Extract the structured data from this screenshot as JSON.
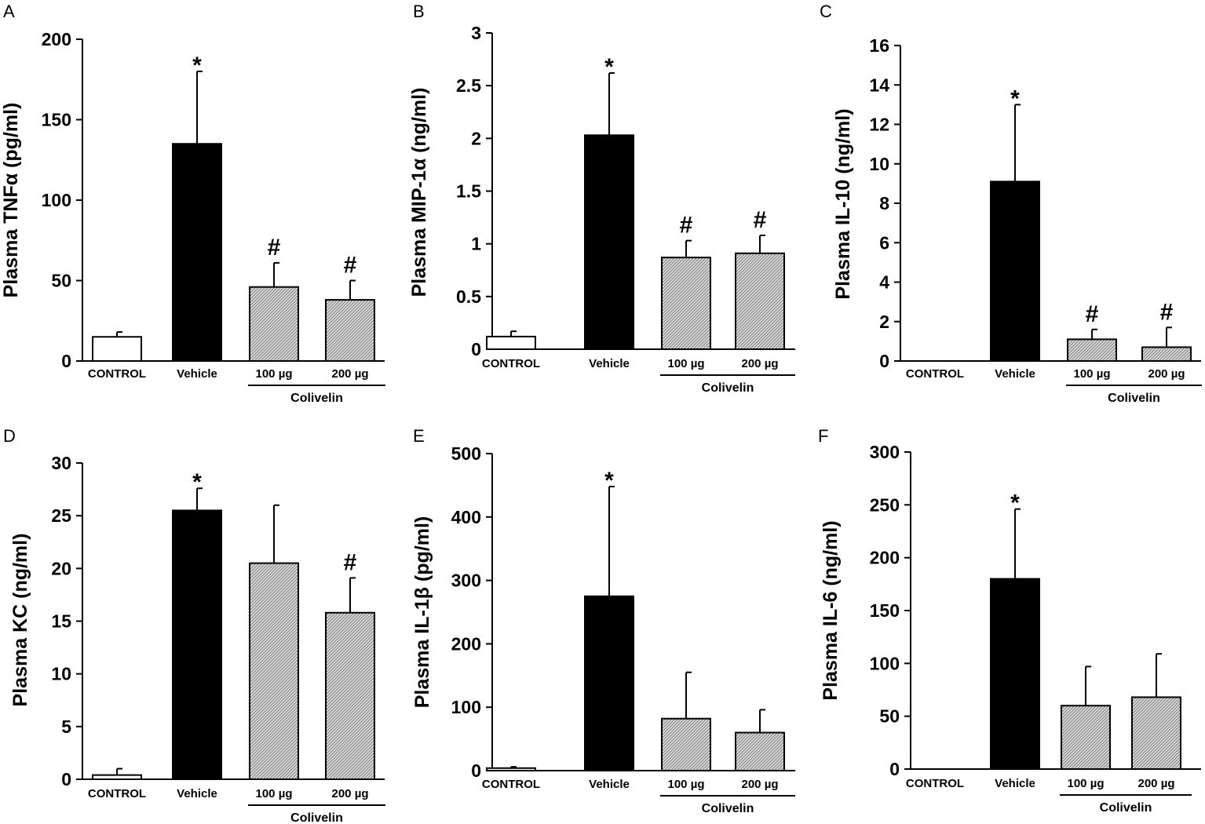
{
  "chart_data": [
    {
      "panel": "A",
      "type": "bar",
      "ylabel": "Plasma TNFα (pg/ml)",
      "yticks": [
        "0",
        "50",
        "100",
        "150",
        "200"
      ],
      "ylim": [
        0,
        200
      ],
      "categories": [
        "CONTROL",
        "Vehicle",
        "100 µg",
        "200 µg"
      ],
      "group_label": "Colivelin",
      "values": [
        15,
        135,
        46,
        38
      ],
      "errors": [
        3,
        45,
        15,
        12
      ],
      "annotations": [
        "",
        "*",
        "#",
        "#"
      ],
      "fills": [
        "white",
        "black",
        "hatch",
        "hatch"
      ]
    },
    {
      "panel": "B",
      "type": "bar",
      "ylabel": "Plasma MIP-1α (ng/ml)",
      "yticks": [
        "0",
        "0.5",
        "1",
        "1.5",
        "2",
        "2.5",
        "3"
      ],
      "ylim": [
        0,
        3
      ],
      "categories": [
        "CONTROL",
        "Vehicle",
        "100 µg",
        "200 µg"
      ],
      "group_label": "Colivelin",
      "values": [
        0.12,
        2.03,
        0.87,
        0.91
      ],
      "errors": [
        0.05,
        0.59,
        0.16,
        0.17
      ],
      "annotations": [
        "",
        "*",
        "#",
        "#"
      ],
      "fills": [
        "white",
        "black",
        "hatch",
        "hatch"
      ]
    },
    {
      "panel": "C",
      "type": "bar",
      "ylabel": "Plasma IL-10 (ng/ml)",
      "yticks": [
        "0",
        "2",
        "4",
        "6",
        "8",
        "10",
        "12",
        "14",
        "16"
      ],
      "ylim": [
        0,
        16
      ],
      "categories": [
        "CONTROL",
        "Vehicle",
        "100 µg",
        "200 µg"
      ],
      "group_label": "Colivelin",
      "values": [
        0,
        9.1,
        1.1,
        0.7
      ],
      "errors": [
        0,
        3.9,
        0.5,
        1.0
      ],
      "annotations": [
        "",
        "*",
        "#",
        "#"
      ],
      "fills": [
        "white",
        "black",
        "hatch",
        "hatch"
      ]
    },
    {
      "panel": "D",
      "type": "bar",
      "ylabel": "Plasma KC (ng/ml)",
      "yticks": [
        "0",
        "5",
        "10",
        "15",
        "20",
        "25",
        "30"
      ],
      "ylim": [
        0,
        30
      ],
      "categories": [
        "CONTROL",
        "Vehicle",
        "100 µg",
        "200 µg"
      ],
      "group_label": "Colivelin",
      "values": [
        0.4,
        25.5,
        20.5,
        15.8
      ],
      "errors": [
        0.6,
        2.1,
        5.5,
        3.3
      ],
      "annotations": [
        "",
        "*",
        "",
        "#"
      ],
      "fills": [
        "white",
        "black",
        "hatch",
        "hatch"
      ]
    },
    {
      "panel": "E",
      "type": "bar",
      "ylabel": "Plasma IL-1β (pg/ml)",
      "yticks": [
        "0",
        "100",
        "200",
        "300",
        "400",
        "500"
      ],
      "ylim": [
        0,
        500
      ],
      "categories": [
        "CONTROL",
        "Vehicle",
        "100 µg",
        "200 µg"
      ],
      "group_label": "Colivelin",
      "values": [
        4,
        275,
        82,
        60
      ],
      "errors": [
        2,
        173,
        73,
        36
      ],
      "annotations": [
        "",
        "*",
        "",
        ""
      ],
      "fills": [
        "white",
        "black",
        "hatch",
        "hatch"
      ]
    },
    {
      "panel": "F",
      "type": "bar",
      "ylabel": "Plasma IL-6 (ng/ml)",
      "yticks": [
        "0",
        "50",
        "100",
        "150",
        "200",
        "250",
        "300"
      ],
      "ylim": [
        0,
        300
      ],
      "categories": [
        "CONTROL",
        "Vehicle",
        "100 µg",
        "200 µg"
      ],
      "group_label": "Colivelin",
      "values": [
        0,
        180,
        60,
        68
      ],
      "errors": [
        0,
        66,
        37,
        41
      ],
      "annotations": [
        "",
        "*",
        "",
        ""
      ],
      "fills": [
        "white",
        "black",
        "hatch",
        "hatch"
      ]
    }
  ]
}
